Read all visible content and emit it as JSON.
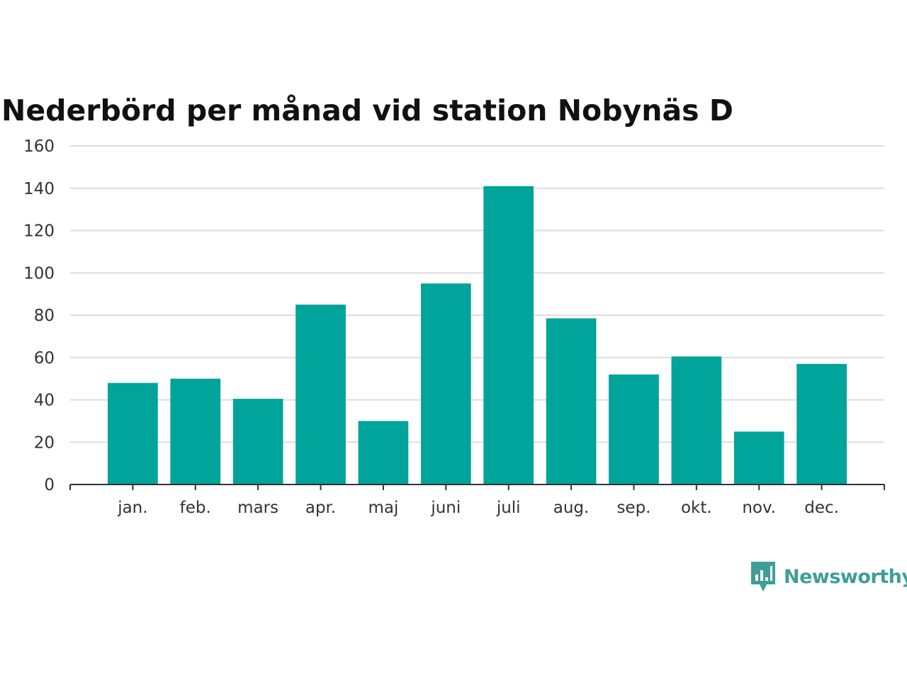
{
  "chart_data": {
    "type": "bar",
    "title": "Nederbörd per månad vid station Nobynäs D",
    "xlabel": "",
    "ylabel": "",
    "categories": [
      "jan.",
      "feb.",
      "mars",
      "apr.",
      "maj",
      "juni",
      "juli",
      "aug.",
      "sep.",
      "okt.",
      "nov.",
      "dec."
    ],
    "values": [
      48,
      50,
      40.5,
      85,
      30,
      95,
      141,
      78.5,
      52,
      60.5,
      25,
      57
    ],
    "ylim": [
      0,
      160
    ],
    "yticks": [
      0,
      20,
      40,
      60,
      80,
      100,
      120,
      140,
      160
    ],
    "grid": true,
    "bar_color": "#00a49a",
    "grid_color": "#dddddd",
    "axis_color": "#333333"
  },
  "brand": {
    "name": "Newsworthy",
    "icon": "newsworthy-logo-icon",
    "color": "#3f9e97"
  }
}
